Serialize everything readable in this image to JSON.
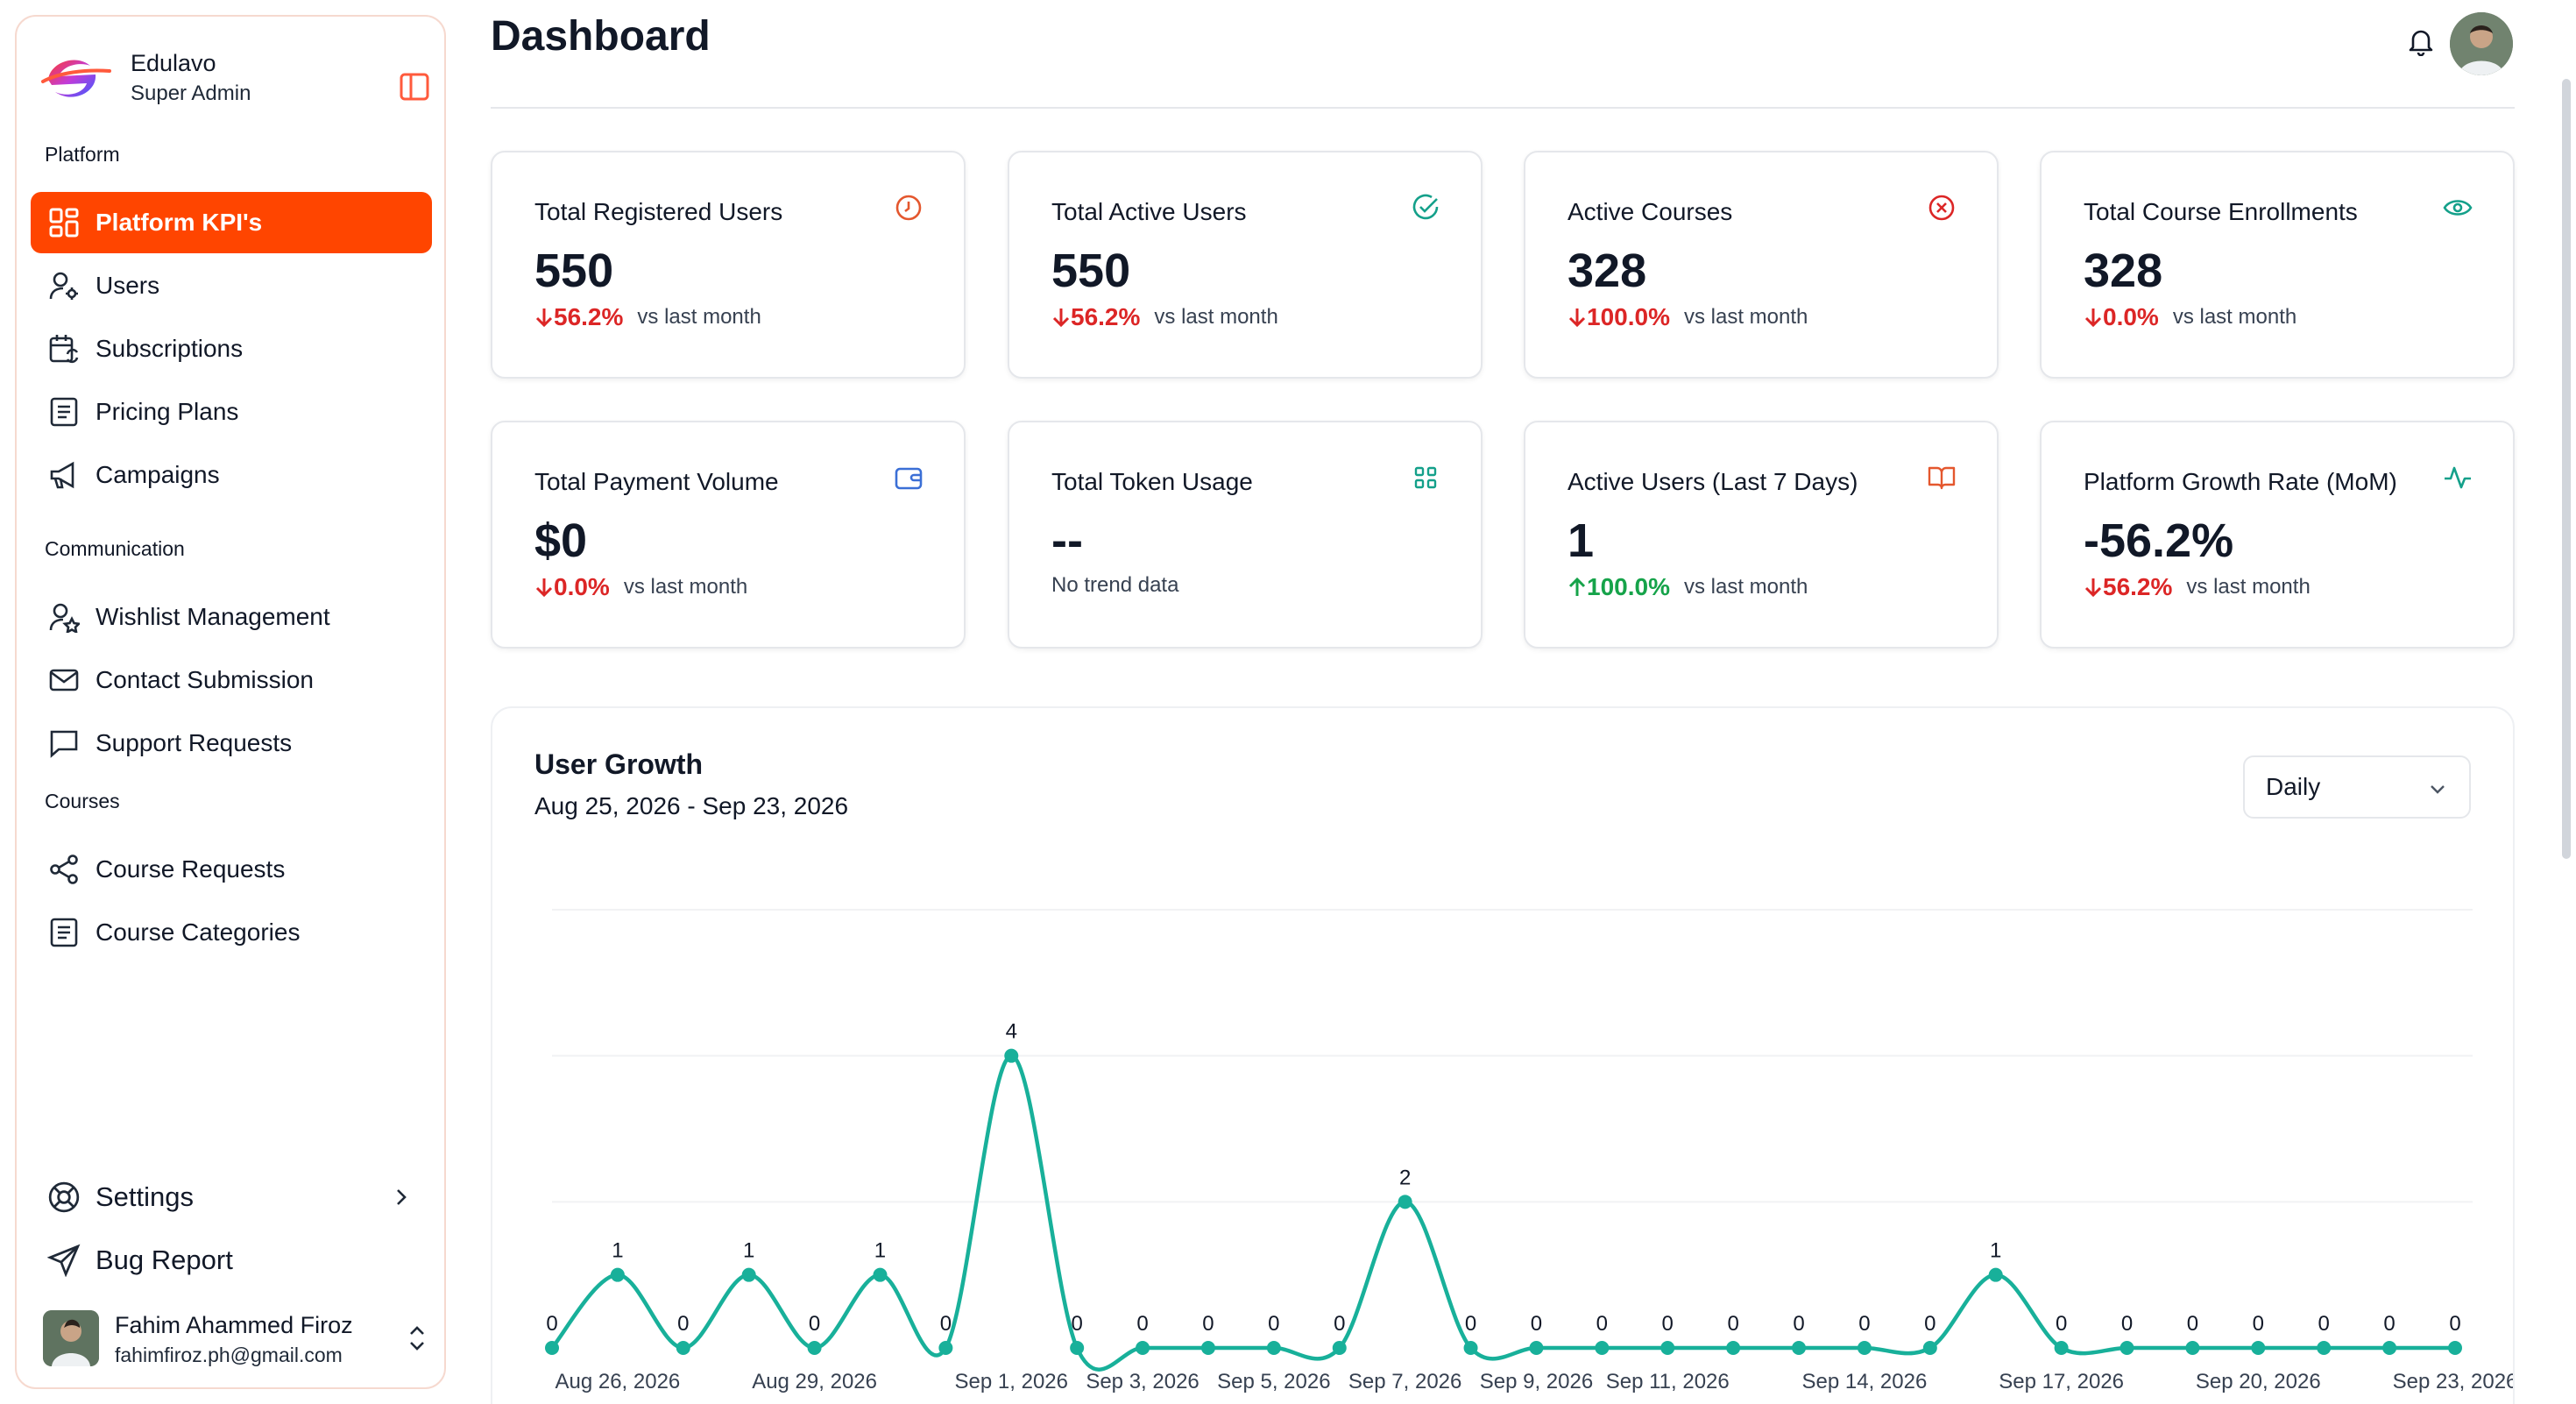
{
  "brand": {
    "name": "Edulavo",
    "role": "Super Admin"
  },
  "sidebar": {
    "sections": [
      {
        "label": "Platform"
      },
      {
        "label": "Communication"
      },
      {
        "label": "Courses"
      }
    ],
    "items": [
      {
        "label": "Platform KPI's",
        "icon": "dashboard-grid-icon",
        "active": true
      },
      {
        "label": "Users",
        "icon": "user-gear-icon"
      },
      {
        "label": "Subscriptions",
        "icon": "calendar-sync-icon"
      },
      {
        "label": "Pricing Plans",
        "icon": "document-list-icon"
      },
      {
        "label": "Campaigns",
        "icon": "megaphone-icon"
      },
      {
        "label": "Wishlist Management",
        "icon": "user-star-icon"
      },
      {
        "label": "Contact Submission",
        "icon": "mail-icon"
      },
      {
        "label": "Support Requests",
        "icon": "chat-bubble-icon"
      },
      {
        "label": "Course Requests",
        "icon": "share-nodes-icon"
      },
      {
        "label": "Course Categories",
        "icon": "document-list-icon"
      }
    ],
    "bottom": [
      {
        "label": "Settings",
        "icon": "lifebuoy-icon"
      },
      {
        "label": "Bug Report",
        "icon": "send-icon"
      }
    ],
    "user": {
      "name": "Fahim Ahammed Firoz",
      "email": "fahimfiroz.ph@gmail.com"
    }
  },
  "header": {
    "title": "Dashboard"
  },
  "kpis": [
    {
      "title": "Total Registered Users",
      "value": "550",
      "trend": "56.2%",
      "direction": "down",
      "vs": "vs last month",
      "icon": "clock-icon",
      "icon_color": "#e4572e"
    },
    {
      "title": "Total Active Users",
      "value": "550",
      "trend": "56.2%",
      "direction": "down",
      "vs": "vs last month",
      "icon": "check-circle-icon",
      "icon_color": "#14a08a"
    },
    {
      "title": "Active Courses",
      "value": "328",
      "trend": "100.0%",
      "direction": "down",
      "vs": "vs last month",
      "icon": "x-circle-icon",
      "icon_color": "#dc2626"
    },
    {
      "title": "Total Course Enrollments",
      "value": "328",
      "trend": "0.0%",
      "direction": "down",
      "vs": "vs last month",
      "icon": "eye-icon",
      "icon_color": "#14a08a"
    },
    {
      "title": "Total Payment Volume",
      "value": "$0",
      "trend": "0.0%",
      "direction": "down",
      "vs": "vs last month",
      "icon": "wallet-icon",
      "icon_color": "#3b6fd6"
    },
    {
      "title": "Total Token Usage",
      "value": "--",
      "no_trend": "No trend data",
      "icon": "grid-icon",
      "icon_color": "#14a08a"
    },
    {
      "title": "Active Users (Last 7 Days)",
      "value": "1",
      "trend": "100.0%",
      "direction": "up",
      "vs": "vs last month",
      "icon": "book-open-icon",
      "icon_color": "#e4572e"
    },
    {
      "title": "Platform Growth Rate (MoM)",
      "value": "-56.2%",
      "trend": "56.2%",
      "direction": "down",
      "vs": "vs last month",
      "icon": "activity-icon",
      "icon_color": "#14a08a"
    }
  ],
  "user_growth": {
    "title": "User Growth",
    "range": "Aug 25, 2026 - Sep 23, 2026",
    "period": "Daily"
  },
  "colors": {
    "accent": "#ff4500",
    "line": "#18b09a",
    "down": "#dc2626",
    "up": "#16a34a"
  },
  "chart_data": {
    "type": "line",
    "x": [
      "Aug 25, 2026",
      "Aug 26, 2026",
      "Aug 27, 2026",
      "Aug 28, 2026",
      "Aug 29, 2026",
      "Aug 30, 2026",
      "Aug 31, 2026",
      "Sep 1, 2026",
      "Sep 2, 2026",
      "Sep 3, 2026",
      "Sep 4, 2026",
      "Sep 5, 2026",
      "Sep 6, 2026",
      "Sep 7, 2026",
      "Sep 8, 2026",
      "Sep 9, 2026",
      "Sep 10, 2026",
      "Sep 11, 2026",
      "Sep 12, 2026",
      "Sep 13, 2026",
      "Sep 14, 2026",
      "Sep 15, 2026",
      "Sep 16, 2026",
      "Sep 17, 2026",
      "Sep 18, 2026",
      "Sep 19, 2026",
      "Sep 20, 2026",
      "Sep 21, 2026",
      "Sep 22, 2026",
      "Sep 23, 2026"
    ],
    "values": [
      0,
      1,
      0,
      1,
      0,
      1,
      0,
      4,
      0,
      0,
      0,
      0,
      0,
      2,
      0,
      0,
      0,
      0,
      0,
      0,
      0,
      0,
      1,
      0,
      0,
      0,
      0,
      0,
      0,
      0
    ],
    "tick_labels": [
      {
        "index": 1,
        "label": "Aug 26, 2026"
      },
      {
        "index": 4,
        "label": "Aug 29, 2026"
      },
      {
        "index": 7,
        "label": "Sep 1, 2026"
      },
      {
        "index": 9,
        "label": "Sep 3, 2026"
      },
      {
        "index": 11,
        "label": "Sep 5, 2026"
      },
      {
        "index": 13,
        "label": "Sep 7, 2026"
      },
      {
        "index": 15,
        "label": "Sep 9, 2026"
      },
      {
        "index": 17,
        "label": "Sep 11, 2026"
      },
      {
        "index": 20,
        "label": "Sep 14, 2026"
      },
      {
        "index": 23,
        "label": "Sep 17, 2026"
      },
      {
        "index": 26,
        "label": "Sep 20, 2026"
      },
      {
        "index": 29,
        "label": "Sep 23, 2026"
      }
    ],
    "ylim": [
      0,
      6
    ],
    "grid": true,
    "data_labels": true
  }
}
